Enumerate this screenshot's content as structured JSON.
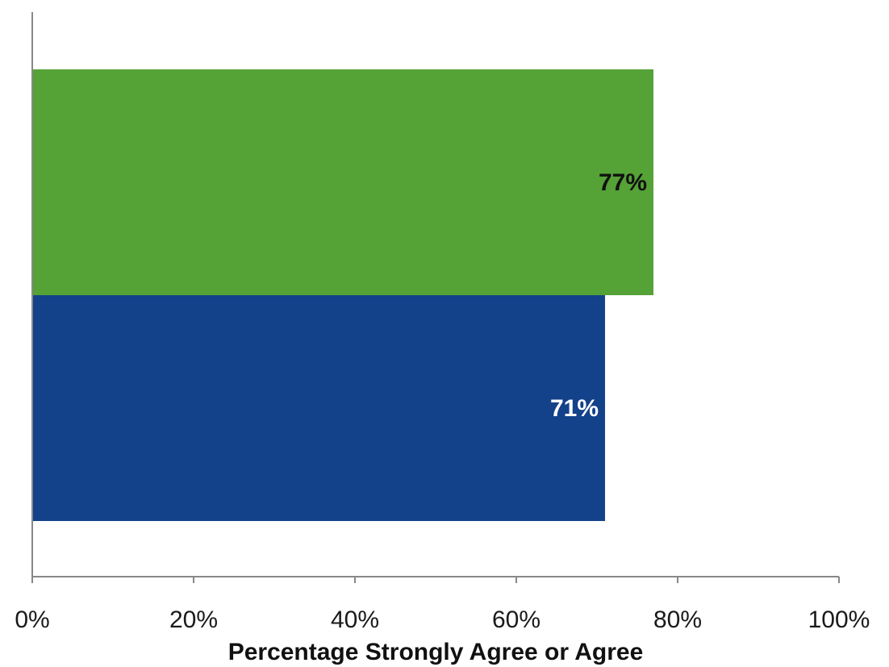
{
  "chart_data": {
    "type": "bar",
    "orientation": "horizontal",
    "xlabel": "Percentage Strongly Agree or Agree",
    "ylabel": "",
    "xlim": [
      0,
      100
    ],
    "x_ticks": [
      "0%",
      "20%",
      "40%",
      "60%",
      "80%",
      "100%"
    ],
    "series": [
      {
        "value": 77,
        "label": "77%",
        "color": "#55a237",
        "label_color": "#111111"
      },
      {
        "value": 71,
        "label": "71%",
        "color": "#13418a",
        "label_color": "#ffffff"
      }
    ],
    "grid": false,
    "legend": "none"
  }
}
